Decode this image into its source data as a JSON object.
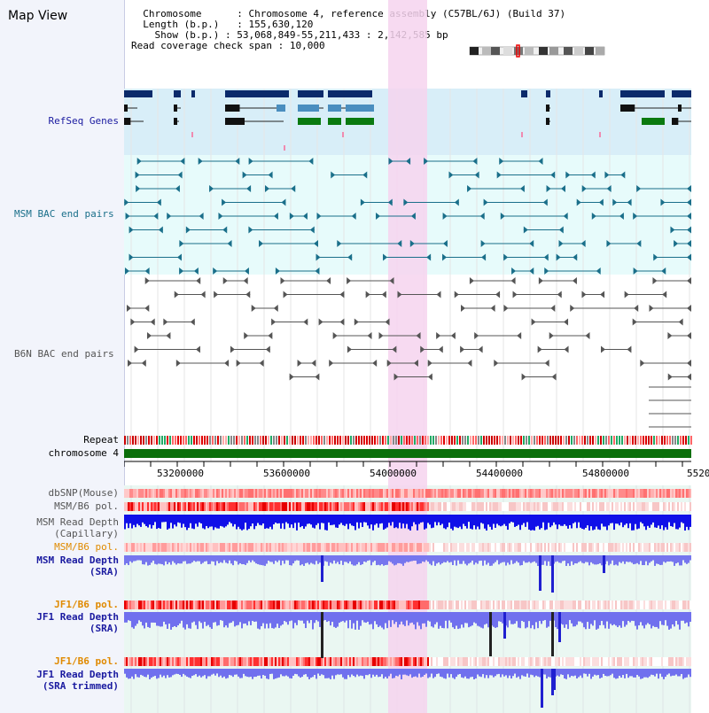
{
  "view_title": "Map View",
  "header": {
    "chromosome_label": "Chromosome",
    "chromosome_value": "Chromosome 4, reference assembly (C57BL/6J) (Build 37)",
    "length_label": "Length (b.p.)",
    "length_value": "155,630,120",
    "show_label": "Show (b.p.)",
    "show_value": "53,068,849-55,211,433 : 2,142,585 bp",
    "span_label": "Read coverage check span",
    "span_value": "10,000"
  },
  "tracks": {
    "refseq": "RefSeq Genes",
    "msm_bac": "MSM BAC end pairs",
    "b6n_bac": "B6N BAC end pairs",
    "repeat": "Repeat",
    "chromosome": "chromosome 4",
    "dbsnp": "dbSNP(Mouse)",
    "msm_b6_pol_1": "MSM/B6 pol.",
    "msm_depth_cap_1": "MSM Read Depth",
    "msm_depth_cap_2": "(Capillary)",
    "msm_b6_pol_2": "MSM/B6 pol.",
    "msm_depth_sra_1": "MSM Read Depth",
    "msm_depth_sra_2": "(SRA)",
    "jf1_b6_pol_1": "JF1/B6 pol.",
    "jf1_depth_sra_1": "JF1 Read Depth",
    "jf1_depth_sra_2": "(SRA)",
    "jf1_b6_pol_2": "JF1/B6 pol.",
    "jf1_depth_trim_1": "JF1 Read Depth",
    "jf1_depth_trim_2": "(SRA trimmed)"
  },
  "axis_ticks": [
    "53200000",
    "53600000",
    "54000000",
    "54400000",
    "54800000",
    "5520"
  ],
  "colors": {
    "refseq_dark": "#0b2a6b",
    "refseq_mid": "#4a8ebf",
    "refseq_green": "#0a7a10",
    "msm_teal": "#1a6f8a",
    "b6n_gray": "#555555",
    "highlight_pink": "#f6d4ef",
    "label_blue": "#1a1aa0",
    "label_orange": "#e08a00",
    "label_teal": "#1a6f8a"
  }
}
